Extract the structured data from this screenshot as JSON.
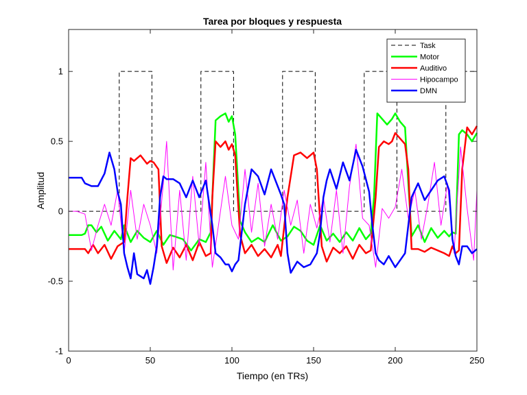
{
  "chart_data": {
    "type": "line",
    "title": "Tarea por bloques y respuesta",
    "xlabel": "Tiempo (en TRs)",
    "ylabel": "Amplitud",
    "xlim": [
      0,
      250
    ],
    "ylim": [
      -1,
      1.3
    ],
    "xticks": [
      0,
      50,
      100,
      150,
      200,
      250
    ],
    "xtick_labels": [
      "0",
      "50",
      "100",
      "150",
      "200",
      "250"
    ],
    "yticks": [
      -1,
      -0.5,
      0,
      0.5,
      1
    ],
    "ytick_labels": [
      "-1",
      "-0.5",
      "0",
      "0.5",
      "1"
    ],
    "grid": false,
    "legend_position": "top-right",
    "series": [
      {
        "name": "Task",
        "color": "#000000",
        "dash": true,
        "width": 1,
        "x": [
          0,
          31,
          31,
          51,
          51,
          81,
          81,
          101,
          101,
          131,
          131,
          151,
          151,
          181,
          181,
          201,
          201,
          231,
          231,
          250
        ],
        "y": [
          0,
          0,
          1,
          1,
          0,
          0,
          1,
          1,
          0,
          0,
          1,
          1,
          0,
          0,
          1,
          1,
          0,
          0,
          1,
          1
        ]
      },
      {
        "name": "Motor",
        "color": "#00ff00",
        "dash": false,
        "width": 2.5,
        "x": [
          0,
          8,
          10,
          12,
          14,
          17,
          20,
          24,
          28,
          30,
          32,
          34,
          38,
          42,
          46,
          50,
          54,
          58,
          62,
          65,
          70,
          75,
          80,
          84,
          87,
          88,
          90,
          93,
          96,
          98,
          100,
          102,
          105,
          108,
          112,
          116,
          120,
          125,
          130,
          134,
          138,
          142,
          146,
          150,
          154,
          158,
          162,
          166,
          170,
          174,
          178,
          182,
          185,
          187,
          189,
          192,
          195,
          198,
          200,
          203,
          206,
          208,
          210,
          214,
          218,
          222,
          226,
          230,
          233,
          235,
          237,
          239,
          241,
          244,
          247,
          250
        ],
        "y": [
          -0.17,
          -0.17,
          -0.16,
          -0.1,
          -0.1,
          -0.15,
          -0.11,
          -0.21,
          -0.14,
          -0.17,
          -0.2,
          -0.1,
          -0.22,
          -0.14,
          -0.19,
          -0.22,
          -0.14,
          -0.24,
          -0.17,
          -0.18,
          -0.2,
          -0.28,
          -0.2,
          -0.22,
          -0.15,
          0.1,
          0.65,
          0.68,
          0.7,
          0.64,
          0.68,
          0.55,
          -0.07,
          -0.15,
          -0.22,
          -0.19,
          -0.22,
          -0.1,
          -0.21,
          -0.18,
          -0.11,
          -0.14,
          -0.21,
          -0.24,
          -0.1,
          -0.21,
          -0.16,
          -0.22,
          -0.15,
          -0.21,
          -0.12,
          -0.2,
          -0.16,
          0.1,
          0.7,
          0.66,
          0.62,
          0.66,
          0.7,
          0.64,
          0.6,
          0.2,
          -0.18,
          -0.1,
          -0.22,
          -0.12,
          -0.19,
          -0.14,
          -0.18,
          -0.15,
          -0.16,
          0.55,
          0.58,
          0.55,
          0.5,
          0.56
        ]
      },
      {
        "name": "Auditivo",
        "color": "#ff0000",
        "dash": false,
        "width": 2.5,
        "x": [
          0,
          10,
          12,
          15,
          18,
          22,
          26,
          30,
          34,
          36,
          38,
          40,
          44,
          48,
          50,
          52,
          55,
          57,
          60,
          64,
          68,
          72,
          76,
          80,
          84,
          87,
          88,
          90,
          93,
          96,
          98,
          100,
          102,
          105,
          108,
          112,
          116,
          120,
          124,
          128,
          130,
          134,
          138,
          142,
          146,
          150,
          152,
          155,
          158,
          162,
          166,
          170,
          174,
          178,
          182,
          185,
          188,
          190,
          193,
          196,
          198,
          200,
          203,
          206,
          208,
          210,
          214,
          218,
          222,
          226,
          230,
          233,
          235,
          237,
          239,
          241,
          244,
          247,
          250
        ],
        "y": [
          -0.27,
          -0.27,
          -0.3,
          -0.24,
          -0.3,
          -0.24,
          -0.34,
          -0.25,
          -0.22,
          0.1,
          0.38,
          0.36,
          0.4,
          0.34,
          0.36,
          0.35,
          0.3,
          -0.25,
          -0.37,
          -0.26,
          -0.33,
          -0.24,
          -0.35,
          -0.22,
          -0.32,
          -0.3,
          0.1,
          0.5,
          0.46,
          0.5,
          0.44,
          0.48,
          0.4,
          -0.17,
          -0.3,
          -0.24,
          -0.32,
          -0.27,
          -0.33,
          -0.24,
          -0.32,
          0.1,
          0.4,
          0.42,
          0.38,
          0.42,
          0.3,
          -0.25,
          -0.36,
          -0.26,
          -0.3,
          -0.25,
          -0.34,
          -0.24,
          -0.3,
          -0.28,
          0.1,
          0.46,
          0.5,
          0.48,
          0.5,
          0.56,
          0.52,
          0.48,
          0.3,
          -0.27,
          -0.27,
          -0.29,
          -0.26,
          -0.28,
          -0.3,
          -0.32,
          -0.25,
          -0.3,
          -0.28,
          0.3,
          0.6,
          0.55,
          0.61
        ]
      },
      {
        "name": "Hipocampo",
        "color": "#ff00ff",
        "dash": false,
        "width": 1,
        "x": [
          0,
          5,
          10,
          14,
          18,
          22,
          26,
          30,
          34,
          38,
          42,
          46,
          50,
          54,
          58,
          60,
          64,
          68,
          72,
          76,
          80,
          84,
          88,
          92,
          96,
          100,
          104,
          108,
          112,
          116,
          120,
          124,
          128,
          132,
          136,
          140,
          144,
          148,
          152,
          156,
          160,
          164,
          168,
          172,
          176,
          180,
          184,
          188,
          192,
          196,
          200,
          204,
          208,
          212,
          216,
          220,
          224,
          228,
          232,
          236,
          240,
          244,
          248,
          250
        ],
        "y": [
          0,
          0,
          -0.02,
          -0.28,
          -0.1,
          0.05,
          -0.1,
          0.15,
          -0.3,
          0.15,
          -0.2,
          0.05,
          -0.1,
          -0.3,
          0.2,
          0.5,
          -0.42,
          0.15,
          -0.35,
          0.25,
          -0.25,
          0.35,
          -0.4,
          -0.08,
          0.25,
          -0.1,
          -0.2,
          0.3,
          -0.15,
          0.2,
          -0.25,
          0.05,
          -0.2,
          0.15,
          -0.1,
          0.08,
          -0.3,
          0.05,
          -0.12,
          0.1,
          -0.22,
          0.15,
          -0.3,
          0.18,
          0.48,
          -0.05,
          -0.1,
          -0.4,
          0.02,
          -0.05,
          0.03,
          0.3,
          -0.05,
          0.15,
          -0.2,
          0.05,
          0.35,
          -0.1,
          0.2,
          -0.3,
          0.46,
          0.02,
          -0.35,
          0.15
        ]
      },
      {
        "name": "DMN",
        "color": "#0000ff",
        "dash": false,
        "width": 2.5,
        "x": [
          0,
          8,
          10,
          14,
          18,
          22,
          25,
          28,
          30,
          32,
          34,
          36,
          38,
          40,
          42,
          46,
          48,
          50,
          52,
          54,
          56,
          58,
          60,
          64,
          68,
          72,
          76,
          80,
          84,
          88,
          90,
          93,
          96,
          98,
          100,
          102,
          104,
          108,
          112,
          116,
          120,
          124,
          128,
          130,
          132,
          134,
          136,
          140,
          144,
          148,
          152,
          154,
          156,
          158,
          160,
          164,
          168,
          172,
          176,
          180,
          184,
          186,
          188,
          190,
          193,
          196,
          198,
          200,
          203,
          206,
          208,
          210,
          214,
          218,
          222,
          226,
          230,
          233,
          235,
          237,
          239,
          241,
          244,
          247,
          250
        ],
        "y": [
          0.24,
          0.24,
          0.2,
          0.18,
          0.18,
          0.27,
          0.42,
          0.3,
          0.14,
          0.05,
          -0.3,
          -0.4,
          -0.48,
          -0.3,
          -0.45,
          -0.48,
          -0.42,
          -0.52,
          -0.4,
          -0.25,
          0.1,
          0.25,
          0.23,
          0.23,
          0.2,
          0.1,
          0.22,
          0.1,
          0.22,
          -0.1,
          -0.3,
          -0.33,
          -0.38,
          -0.38,
          -0.43,
          -0.38,
          -0.35,
          0.05,
          0.3,
          0.25,
          0.12,
          0.3,
          0.18,
          0.12,
          0.05,
          -0.3,
          -0.44,
          -0.36,
          -0.4,
          -0.38,
          -0.3,
          -0.15,
          0.1,
          0.22,
          0.3,
          0.16,
          0.35,
          0.22,
          0.44,
          0.32,
          0.14,
          -0.1,
          -0.3,
          -0.35,
          -0.38,
          -0.32,
          -0.36,
          -0.4,
          -0.35,
          -0.3,
          -0.1,
          0.1,
          0.2,
          0.08,
          0.15,
          0.22,
          0.25,
          0.15,
          -0.2,
          -0.32,
          -0.38,
          -0.25,
          -0.25,
          -0.3,
          -0.27
        ]
      }
    ]
  }
}
